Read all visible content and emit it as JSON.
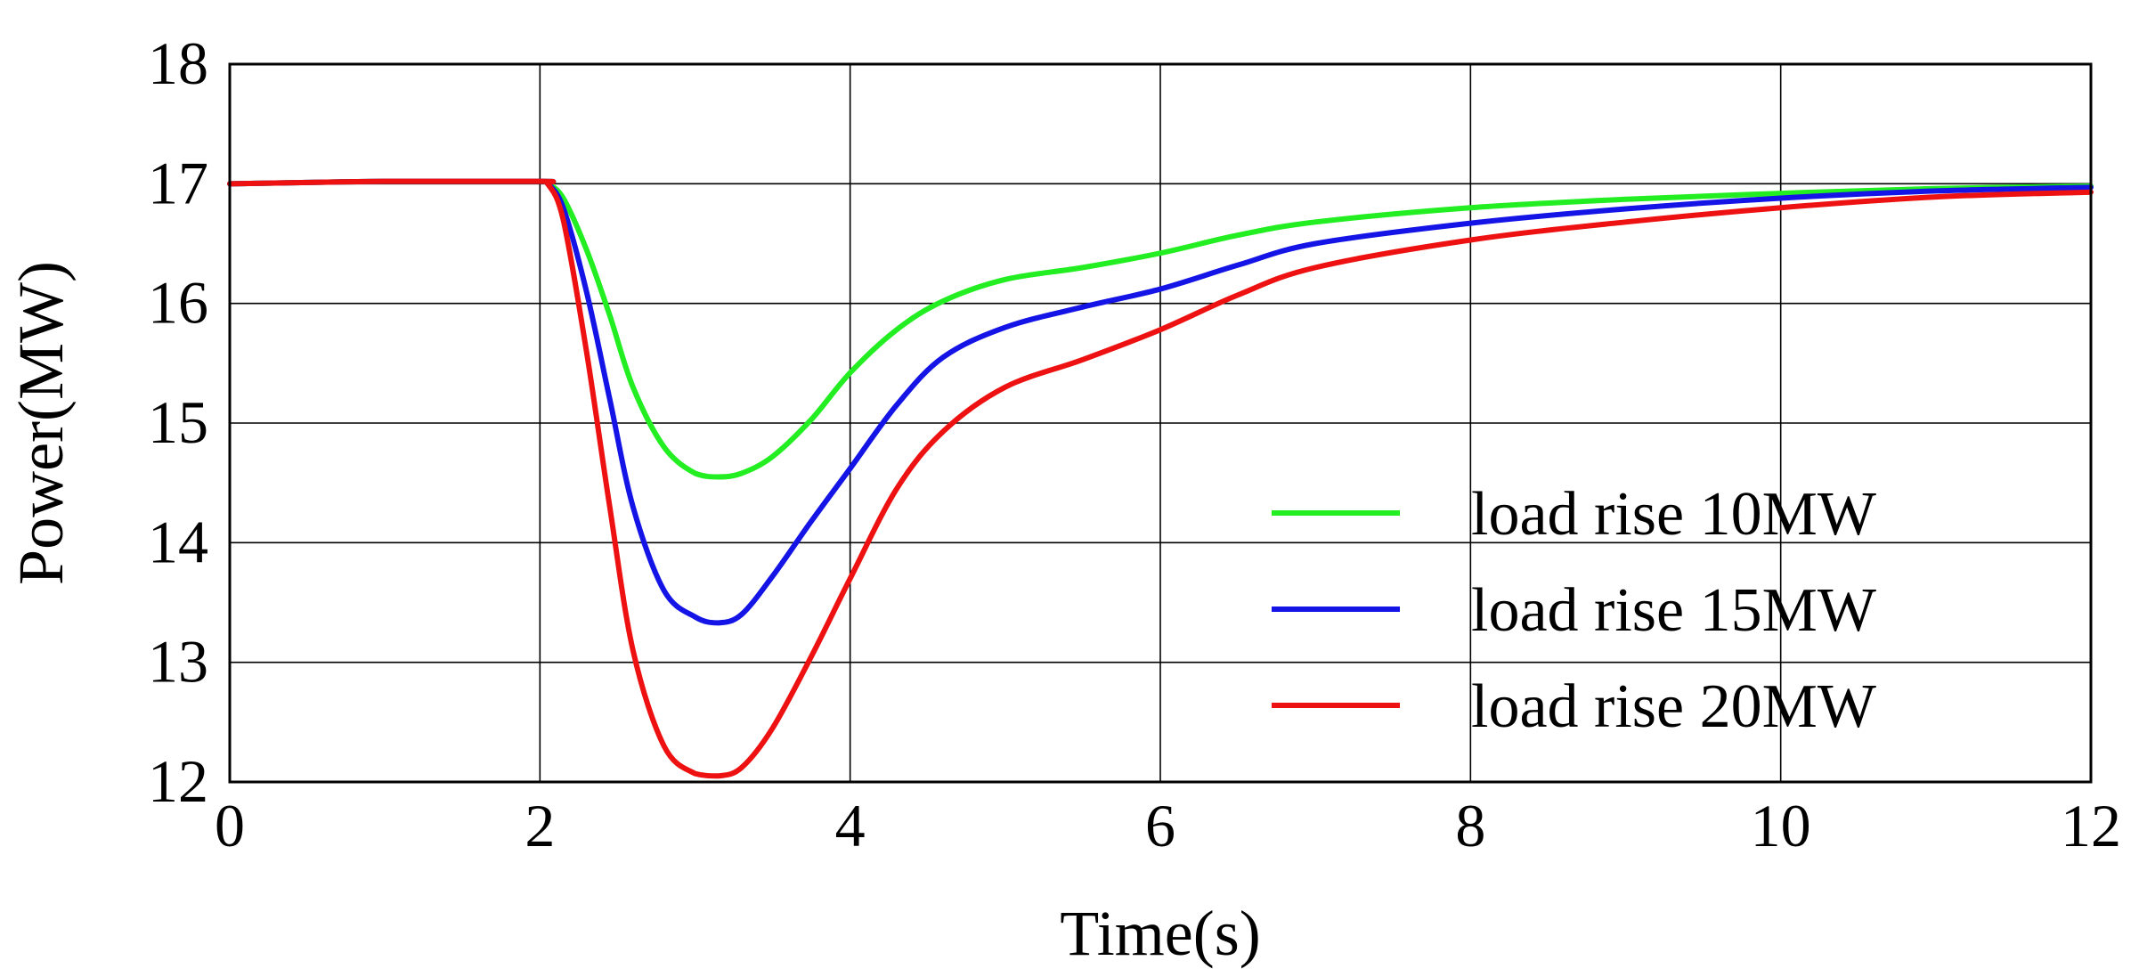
{
  "chart_data": {
    "type": "line",
    "title": "",
    "xlabel": "Time(s)",
    "ylabel": "Power(MW)",
    "xlim": [
      0,
      12
    ],
    "ylim": [
      12,
      18
    ],
    "xticks": [
      0,
      2,
      4,
      6,
      8,
      10,
      12
    ],
    "yticks": [
      12,
      13,
      14,
      15,
      16,
      17,
      18
    ],
    "xtick_labels": [
      "0",
      "2",
      "4",
      "6",
      "8",
      "10",
      "12"
    ],
    "ytick_labels": [
      "12",
      "13",
      "14",
      "15",
      "16",
      "17",
      "18"
    ],
    "grid": true,
    "legend_position": "bottom-right",
    "series": [
      {
        "name": "load rise 10MW",
        "color": "#22ee22",
        "x": [
          0,
          1,
          2,
          2.05,
          2.15,
          2.3,
          2.45,
          2.6,
          2.8,
          3.0,
          3.15,
          3.3,
          3.5,
          3.75,
          4.0,
          4.3,
          4.6,
          5.0,
          5.5,
          6.0,
          6.5,
          7.0,
          8.0,
          9.0,
          10.0,
          11.0,
          12.0
        ],
        "y": [
          17.0,
          17.02,
          17.02,
          17.0,
          16.88,
          16.45,
          15.9,
          15.3,
          14.8,
          14.58,
          14.55,
          14.58,
          14.72,
          15.03,
          15.42,
          15.78,
          16.02,
          16.2,
          16.3,
          16.42,
          16.57,
          16.68,
          16.8,
          16.87,
          16.92,
          16.96,
          16.98
        ]
      },
      {
        "name": "load rise 15MW",
        "color": "#1414e6",
        "x": [
          0,
          1,
          2,
          2.05,
          2.15,
          2.3,
          2.45,
          2.6,
          2.8,
          3.0,
          3.15,
          3.3,
          3.5,
          3.75,
          4.0,
          4.3,
          4.6,
          5.0,
          5.5,
          6.0,
          6.5,
          7.0,
          8.0,
          9.0,
          10.0,
          11.0,
          12.0
        ],
        "y": [
          17.0,
          17.02,
          17.02,
          17.0,
          16.8,
          16.1,
          15.2,
          14.3,
          13.6,
          13.38,
          13.33,
          13.4,
          13.72,
          14.18,
          14.62,
          15.15,
          15.55,
          15.8,
          15.97,
          16.12,
          16.32,
          16.5,
          16.67,
          16.79,
          16.88,
          16.94,
          16.97
        ]
      },
      {
        "name": "load rise 20MW",
        "color": "#ee1111",
        "x": [
          0,
          1,
          2,
          2.05,
          2.15,
          2.3,
          2.45,
          2.6,
          2.8,
          3.0,
          3.15,
          3.3,
          3.5,
          3.75,
          4.0,
          4.3,
          4.6,
          5.0,
          5.5,
          6.0,
          6.5,
          7.0,
          8.0,
          9.0,
          10.0,
          11.0,
          12.0
        ],
        "y": [
          17.0,
          17.02,
          17.02,
          17.0,
          16.7,
          15.6,
          14.3,
          13.1,
          12.3,
          12.07,
          12.05,
          12.12,
          12.45,
          13.05,
          13.7,
          14.45,
          14.93,
          15.3,
          15.53,
          15.78,
          16.07,
          16.3,
          16.53,
          16.68,
          16.8,
          16.89,
          16.93
        ]
      }
    ]
  }
}
